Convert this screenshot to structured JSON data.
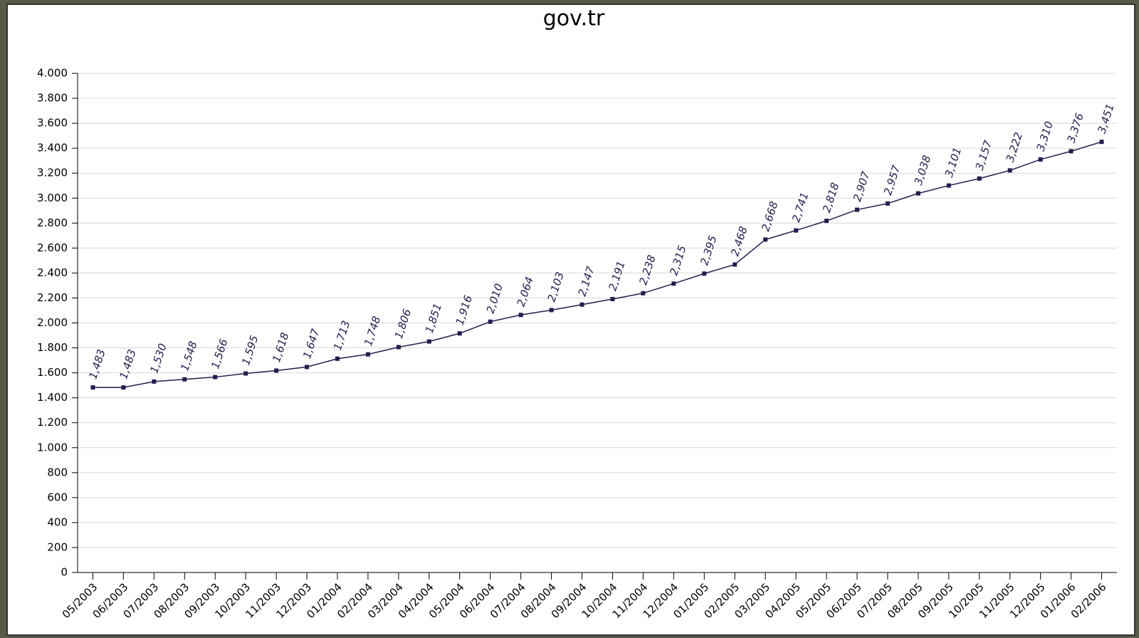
{
  "chart_data": {
    "type": "line",
    "title": "gov.tr",
    "categories": [
      "05/2003",
      "06/2003",
      "07/2003",
      "08/2003",
      "09/2003",
      "10/2003",
      "11/2003",
      "12/2003",
      "01/2004",
      "02/2004",
      "03/2004",
      "04/2004",
      "05/2004",
      "06/2004",
      "07/2004",
      "08/2004",
      "09/2004",
      "10/2004",
      "11/2004",
      "12/2004",
      "01/2005",
      "02/2005",
      "03/2005",
      "04/2005",
      "05/2005",
      "06/2005",
      "07/2005",
      "08/2005",
      "09/2005",
      "10/2005",
      "11/2005",
      "12/2005",
      "01/2006",
      "02/2006"
    ],
    "values": [
      1483,
      1483,
      1530,
      1548,
      1566,
      1595,
      1618,
      1647,
      1713,
      1748,
      1806,
      1851,
      1916,
      2010,
      2064,
      2103,
      2147,
      2191,
      2238,
      2315,
      2395,
      2468,
      2668,
      2741,
      2818,
      2907,
      2957,
      3038,
      3101,
      3157,
      3222,
      3310,
      3376,
      3451
    ],
    "value_labels": [
      "1,483",
      "1,483",
      "1,530",
      "1,548",
      "1,566",
      "1,595",
      "1,618",
      "1,647",
      "1,713",
      "1,748",
      "1,806",
      "1,851",
      "1,916",
      "2,010",
      "2,064",
      "2,103",
      "2,147",
      "2,191",
      "2,238",
      "2,315",
      "2,395",
      "2,468",
      "2,668",
      "2,741",
      "2,818",
      "2,907",
      "2,957",
      "3,038",
      "3,101",
      "3,157",
      "3,222",
      "3,310",
      "3,376",
      "3,451"
    ],
    "color": "#1f1f4f",
    "ylim": [
      0,
      4000
    ],
    "yticks": [
      0,
      200,
      400,
      600,
      800,
      {
        "value": 1000,
        "label": "1.000"
      },
      {
        "value": 1200,
        "label": "1.200"
      },
      {
        "value": 1400,
        "label": "1.400"
      },
      {
        "value": 1600,
        "label": "1.600"
      },
      {
        "value": 1800,
        "label": "1.800"
      },
      {
        "value": 2000,
        "label": "2.000"
      },
      {
        "value": 2200,
        "label": "2.200"
      },
      {
        "value": 2400,
        "label": "2.400"
      },
      {
        "value": 2600,
        "label": "2.600"
      },
      {
        "value": 2800,
        "label": "2.800"
      },
      {
        "value": 3000,
        "label": "3.000"
      },
      {
        "value": 3200,
        "label": "3.200"
      },
      {
        "value": 3400,
        "label": "3.400"
      },
      {
        "value": 3600,
        "label": "3.600"
      },
      {
        "value": 3800,
        "label": "3.800"
      },
      {
        "value": 4000,
        "label": "4.000"
      }
    ],
    "grid": true
  }
}
